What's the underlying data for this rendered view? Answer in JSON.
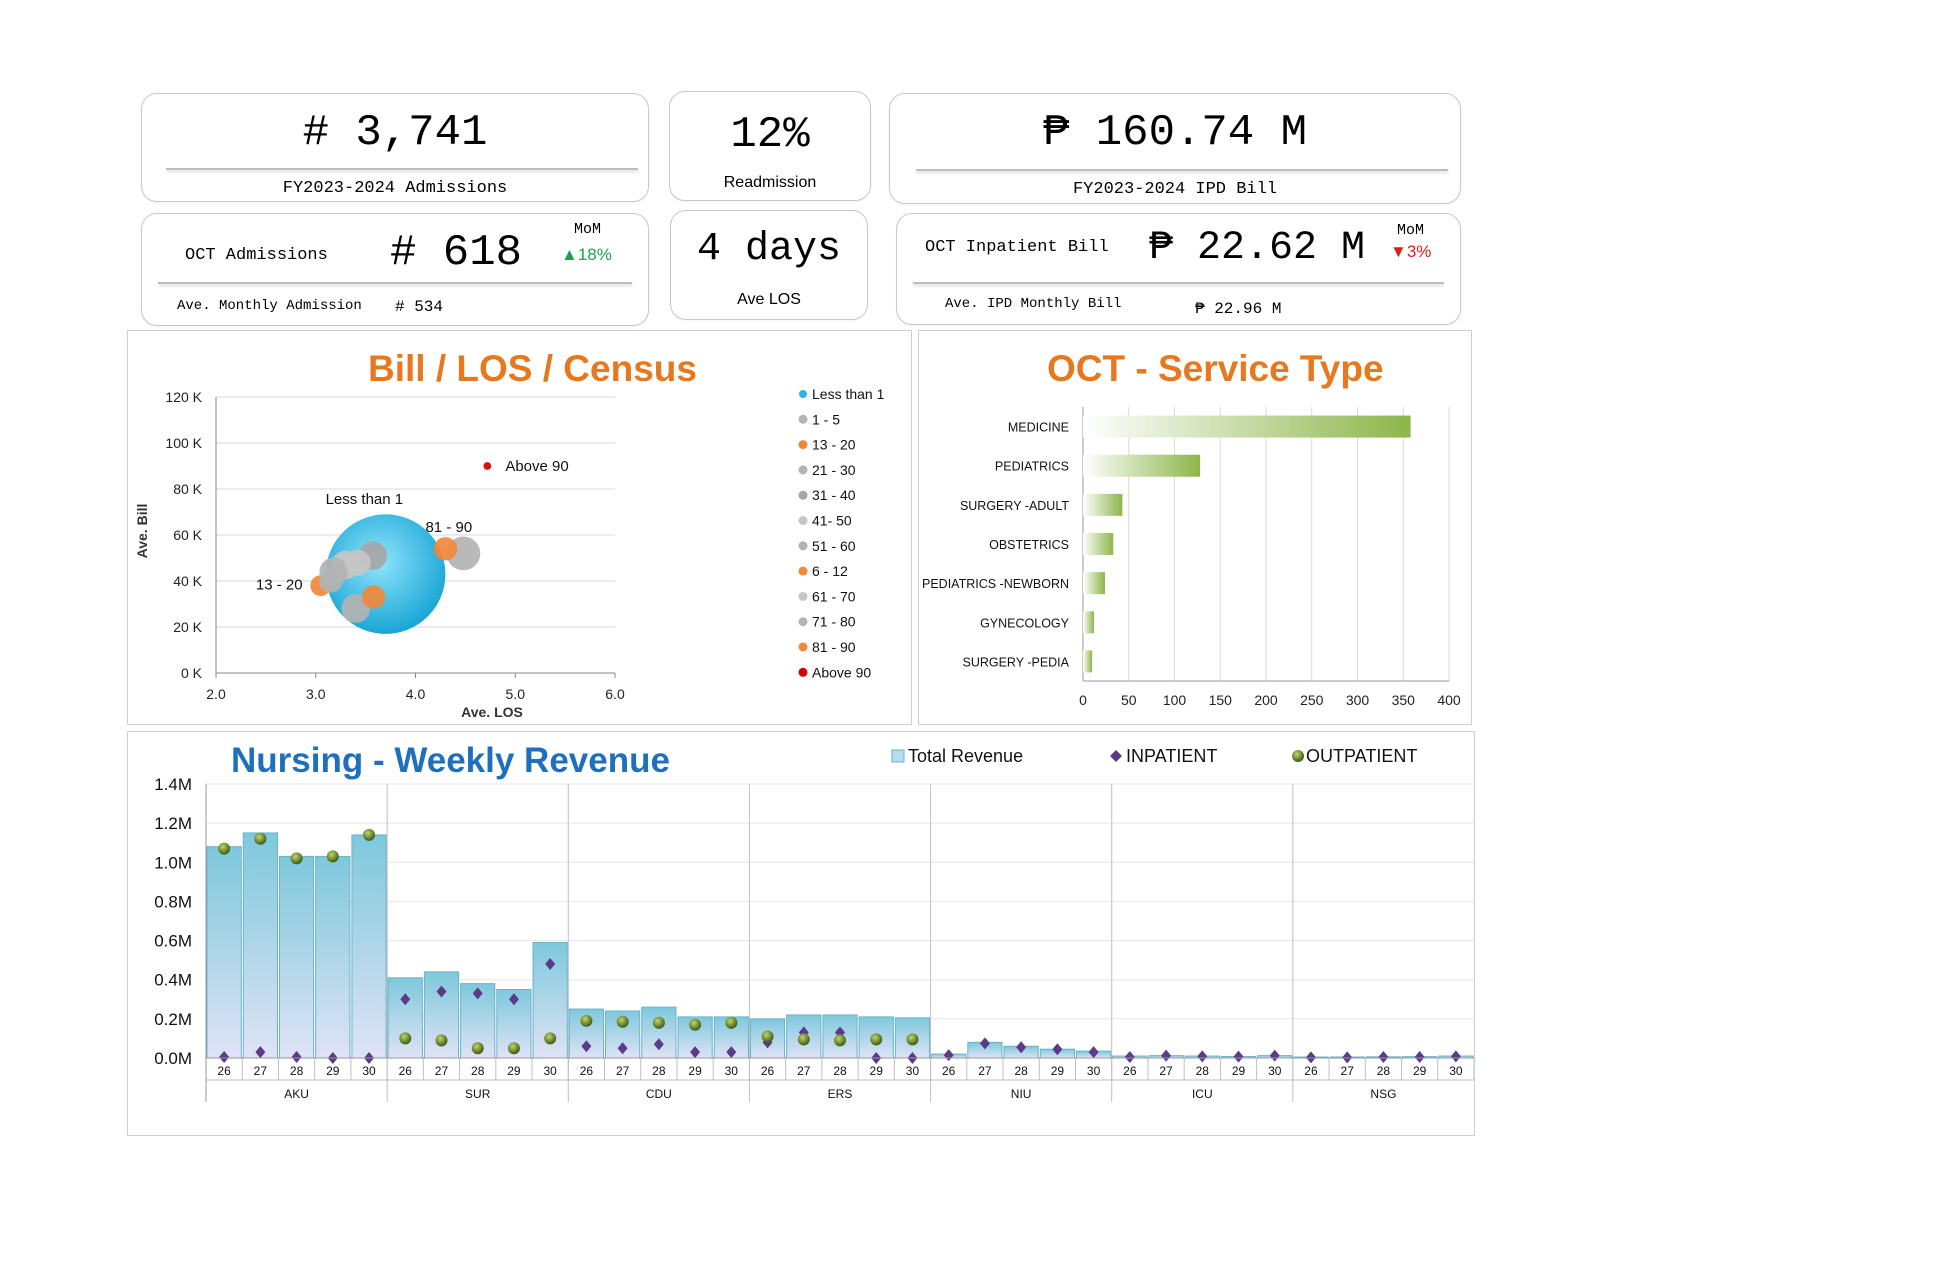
{
  "kpi": {
    "fy_admissions": {
      "value": "# 3,741",
      "label": "FY2023-2024 Admissions"
    },
    "readmission": {
      "value": "12%",
      "label": "Readmission"
    },
    "fy_ipd_bill": {
      "value": "₱ 160.74 M",
      "label": "FY2023-2024 IPD Bill"
    },
    "oct_admissions": {
      "label": "OCT Admissions",
      "value": "# 618",
      "mom_label": "MoM",
      "mom_value": "▲18%",
      "avg_label": "Ave. Monthly Admission",
      "avg_value": "# 534"
    },
    "los": {
      "value": "4 days",
      "label": "Ave LOS"
    },
    "oct_bill": {
      "label": "OCT Inpatient Bill",
      "value": "₱ 22.62 M",
      "mom_label": "MoM",
      "mom_value": "▼3%",
      "avg_label": "Ave. IPD Monthly Bill",
      "avg_value": "₱ 22.96 M"
    }
  },
  "colors": {
    "green": "#1aa34a",
    "red": "#e01b1b",
    "orange": "#e8771e",
    "blue_title": "#1f6fbf",
    "bar_green": "#8cb64a",
    "bubble_cyan": "#2cb5e3",
    "gray": "#b3b3b3",
    "orange_dot": "#f0883c",
    "red_dot": "#d40000",
    "revenue_bar": "#7ec8dc",
    "inpatient": "#5b3a8a",
    "outpatient": "#5f7f1e"
  },
  "chart_data": [
    {
      "type": "scatter",
      "title": "Bill / LOS / Census",
      "xlabel": "Ave. LOS",
      "ylabel": "Ave. Bill",
      "xlim": [
        2.0,
        6.0
      ],
      "ylim": [
        0,
        120000
      ],
      "x_ticks": [
        "2.0",
        "3.0",
        "4.0",
        "5.0",
        "6.0"
      ],
      "y_ticks": [
        "0 K",
        "20 K",
        "40 K",
        "60 K",
        "80 K",
        "100 K",
        "120 K"
      ],
      "legend_position": "right",
      "series": [
        {
          "name": "Less than 1",
          "x": 3.7,
          "y": 43000,
          "size": 46,
          "color": "#2cb5e3"
        },
        {
          "name": "1 - 5",
          "x": 3.4,
          "y": 28000,
          "size": 11,
          "color": "#b3b3b3"
        },
        {
          "name": "13 - 20",
          "x": 3.05,
          "y": 38000,
          "size": 8,
          "color": "#f0883c"
        },
        {
          "name": "21 - 30",
          "x": 3.15,
          "y": 40000,
          "size": 9,
          "color": "#b3b3b3"
        },
        {
          "name": "31 - 40",
          "x": 3.57,
          "y": 51000,
          "size": 11,
          "color": "#a6a6a6"
        },
        {
          "name": "41- 50",
          "x": 3.3,
          "y": 47000,
          "size": 11,
          "color": "#c6c6c6"
        },
        {
          "name": "51 - 60",
          "x": 3.18,
          "y": 44000,
          "size": 11,
          "color": "#b3b3b3"
        },
        {
          "name": "6 - 12",
          "x": 3.58,
          "y": 33000,
          "size": 9,
          "color": "#f0883c"
        },
        {
          "name": "61 - 70",
          "x": 3.42,
          "y": 48000,
          "size": 10,
          "color": "#c6c6c6"
        },
        {
          "name": "71 - 80",
          "x": 4.48,
          "y": 52000,
          "size": 13,
          "color": "#b3b3b3"
        },
        {
          "name": "81 - 90",
          "x": 4.3,
          "y": 54000,
          "size": 9,
          "color": "#f0883c"
        },
        {
          "name": "Above 90",
          "x": 4.72,
          "y": 90000,
          "size": 3,
          "color": "#d40000"
        }
      ],
      "annotations": [
        "Less than 1",
        "81 - 90",
        "13 - 20",
        "Above 90"
      ]
    },
    {
      "type": "bar",
      "orientation": "horizontal",
      "title": "OCT - Service Type",
      "categories": [
        "MEDICINE",
        "PEDIATRICS",
        "SURGERY -ADULT",
        "OBSTETRICS",
        "PEDIATRICS -NEWBORN",
        "GYNECOLOGY",
        "SURGERY -PEDIA"
      ],
      "values": [
        358,
        128,
        43,
        33,
        24,
        12,
        10
      ],
      "xlim": [
        0,
        400
      ],
      "x_ticks": [
        "0",
        "50",
        "100",
        "150",
        "200",
        "250",
        "300",
        "350",
        "400"
      ]
    },
    {
      "type": "bar",
      "title": "Nursing - Weekly Revenue",
      "ylim": [
        0,
        1400000
      ],
      "y_ticks": [
        "0.0M",
        "0.2M",
        "0.4M",
        "0.6M",
        "0.8M",
        "1.0M",
        "1.2M",
        "1.4M"
      ],
      "legend_position": "top-right",
      "groups": [
        "AKU",
        "SUR",
        "CDU",
        "ERS",
        "NIU",
        "ICU",
        "NSG"
      ],
      "weeks": [
        "26",
        "27",
        "28",
        "29",
        "30"
      ],
      "series": [
        {
          "name": "Total Revenue",
          "kind": "bar",
          "values": [
            [
              1080000,
              1150000,
              1030000,
              1030000,
              1140000
            ],
            [
              410000,
              440000,
              380000,
              350000,
              590000
            ],
            [
              250000,
              240000,
              260000,
              210000,
              210000
            ],
            [
              200000,
              220000,
              220000,
              210000,
              205000
            ],
            [
              20000,
              80000,
              60000,
              45000,
              35000
            ],
            [
              10000,
              12000,
              10000,
              8000,
              12000
            ],
            [
              5000,
              5000,
              6000,
              7000,
              10000
            ]
          ]
        },
        {
          "name": "INPATIENT",
          "kind": "marker",
          "values": [
            [
              5000,
              30000,
              5000,
              0,
              0
            ],
            [
              300000,
              340000,
              330000,
              300000,
              480000
            ],
            [
              60000,
              50000,
              70000,
              30000,
              30000
            ],
            [
              80000,
              130000,
              130000,
              0,
              0
            ],
            [
              15000,
              75000,
              55000,
              45000,
              30000
            ],
            [
              5000,
              12000,
              8000,
              7000,
              12000
            ],
            [
              3000,
              3000,
              5000,
              5000,
              8000
            ]
          ]
        },
        {
          "name": "OUTPATIENT",
          "kind": "dot",
          "values": [
            [
              1070000,
              1120000,
              1020000,
              1030000,
              1140000
            ],
            [
              100000,
              90000,
              50000,
              50000,
              100000
            ],
            [
              190000,
              185000,
              180000,
              170000,
              180000
            ],
            [
              110000,
              95000,
              90000,
              95000,
              95000
            ],
            [
              null,
              null,
              null,
              null,
              null
            ],
            [
              null,
              null,
              null,
              null,
              null
            ],
            [
              null,
              null,
              null,
              null,
              null
            ]
          ]
        }
      ]
    }
  ]
}
